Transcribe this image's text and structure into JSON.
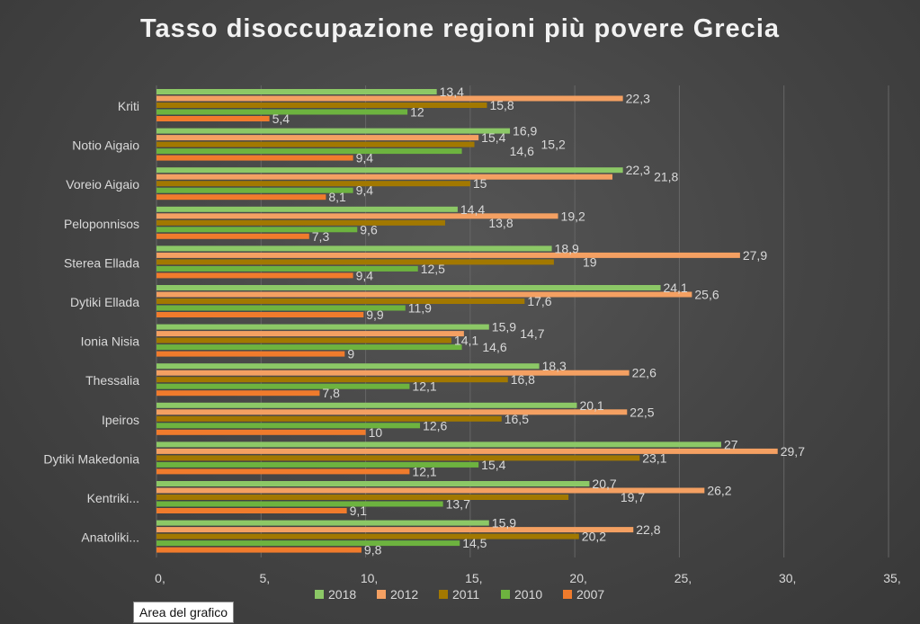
{
  "tooltip": "Area del grafico",
  "chart_data": {
    "type": "bar",
    "orientation": "horizontal",
    "title": "Tasso disoccupazione regioni più povere Grecia",
    "categories": [
      "Kriti",
      "Notio Aigaio",
      "Voreio Aigaio",
      "Peloponnisos",
      "Sterea Ellada",
      "Dytiki Ellada",
      "Ionia Nisia",
      "Thessalia",
      "Ipeiros",
      "Dytiki Makedonia",
      "Kentriki...",
      "Anatoliki..."
    ],
    "series": [
      {
        "name": "2018",
        "color": "#8cc866",
        "values": [
          13.4,
          16.9,
          22.3,
          14.4,
          18.9,
          24.1,
          15.9,
          18.3,
          20.1,
          27,
          20.7,
          15.9
        ]
      },
      {
        "name": "2012",
        "color": "#f4a062",
        "values": [
          22.3,
          15.4,
          21.8,
          19.2,
          27.9,
          25.6,
          14.7,
          22.6,
          22.5,
          29.7,
          26.2,
          22.8
        ]
      },
      {
        "name": "2011",
        "color": "#a27800",
        "values": [
          15.8,
          15.2,
          15,
          13.8,
          19,
          17.6,
          14.1,
          16.8,
          16.5,
          23.1,
          19.7,
          20.2
        ]
      },
      {
        "name": "2010",
        "color": "#6db33f",
        "values": [
          12,
          14.6,
          9.4,
          9.6,
          12.5,
          11.9,
          14.6,
          12.1,
          12.6,
          15.4,
          13.7,
          14.5
        ]
      },
      {
        "name": "2007",
        "color": "#f07b2c",
        "values": [
          5.4,
          9.4,
          8.1,
          7.3,
          9.4,
          9.9,
          9,
          7.8,
          10,
          12.1,
          9.1,
          9.8
        ]
      }
    ],
    "xlim": [
      0,
      35
    ],
    "xticks": [
      "0,",
      "5,",
      "10,",
      "15,",
      "20,",
      "25,",
      "30,",
      "35,"
    ],
    "xtick_values": [
      0,
      5,
      10,
      15,
      20,
      25,
      30,
      35
    ],
    "grid": true,
    "legend": "bottom",
    "decimal_separator": ","
  }
}
